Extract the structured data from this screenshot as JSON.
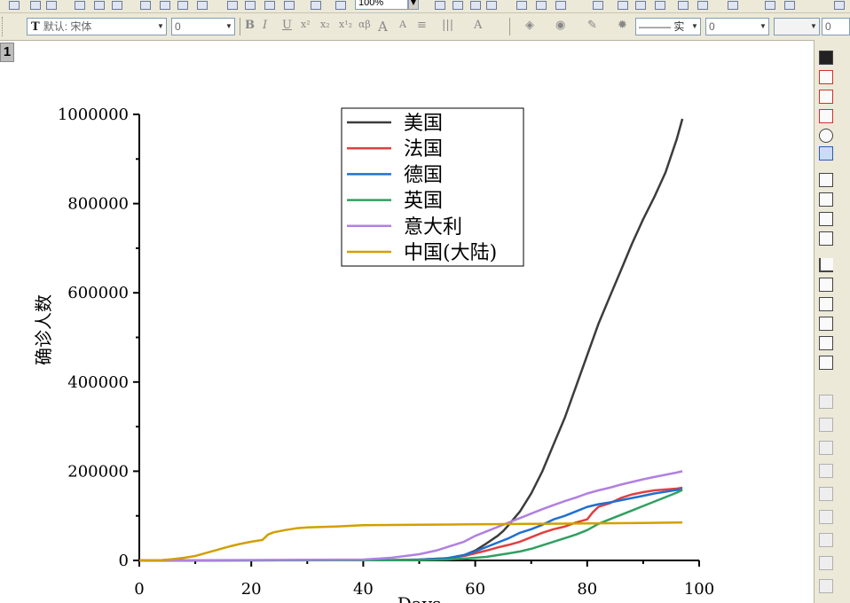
{
  "toolbar": {
    "zoom_value": "100%",
    "font_combo_value": "默认: 宋体",
    "size_combo_value": "0",
    "line_style_value": "——— 实",
    "line_width_value": "0",
    "last_value": "0"
  },
  "layer_tag": "1",
  "chart_data": {
    "type": "line",
    "xlabel": "Days",
    "ylabel": "确诊人数",
    "xlim": [
      0,
      100
    ],
    "ylim": [
      0,
      1000000
    ],
    "x_ticks": [
      "0",
      "20",
      "40",
      "60",
      "80",
      "100"
    ],
    "y_ticks": [
      "0",
      "200000",
      "400000",
      "600000",
      "800000",
      "1000000"
    ],
    "legend_position": "top-center",
    "series": [
      {
        "name": "美国",
        "color": "#3c3c3c",
        "x": [
          0,
          50,
          55,
          58,
          60,
          62,
          64,
          65,
          66,
          67,
          68,
          70,
          72,
          74,
          76,
          78,
          80,
          82,
          84,
          86,
          88,
          90,
          92,
          94,
          96,
          97
        ],
        "y": [
          0,
          1000,
          5000,
          12000,
          22000,
          38000,
          55000,
          66000,
          80000,
          95000,
          110000,
          150000,
          200000,
          260000,
          320000,
          390000,
          460000,
          530000,
          590000,
          650000,
          710000,
          765000,
          815000,
          870000,
          945000,
          990000
        ]
      },
      {
        "name": "法国",
        "color": "#e04040",
        "x": [
          0,
          45,
          50,
          55,
          58,
          60,
          62,
          64,
          66,
          68,
          70,
          72,
          74,
          76,
          78,
          80,
          81,
          82,
          84,
          86,
          88,
          90,
          92,
          94,
          96,
          97
        ],
        "y": [
          0,
          800,
          2000,
          5000,
          10000,
          16000,
          22000,
          29000,
          35000,
          42000,
          52000,
          62000,
          70000,
          76000,
          85000,
          92000,
          108000,
          120000,
          128000,
          140000,
          148000,
          153000,
          157000,
          159000,
          161000,
          163000
        ]
      },
      {
        "name": "德国",
        "color": "#2070d0",
        "x": [
          0,
          45,
          50,
          55,
          58,
          60,
          62,
          64,
          66,
          68,
          70,
          72,
          74,
          76,
          78,
          80,
          82,
          84,
          86,
          88,
          90,
          92,
          94,
          96,
          97
        ],
        "y": [
          0,
          500,
          2000,
          5000,
          12000,
          20000,
          30000,
          40000,
          50000,
          62000,
          70000,
          80000,
          92000,
          100000,
          110000,
          120000,
          126000,
          130000,
          135000,
          140000,
          145000,
          150000,
          154000,
          158000,
          160000
        ]
      },
      {
        "name": "英国",
        "color": "#30a060",
        "x": [
          0,
          50,
          55,
          58,
          60,
          62,
          64,
          66,
          68,
          70,
          72,
          74,
          76,
          78,
          80,
          82,
          84,
          86,
          88,
          90,
          92,
          94,
          96,
          97
        ],
        "y": [
          0,
          800,
          2000,
          4000,
          6000,
          8000,
          12000,
          16000,
          20000,
          26000,
          34000,
          42000,
          50000,
          58000,
          68000,
          82000,
          92000,
          102000,
          112000,
          122000,
          132000,
          142000,
          152000,
          158000
        ]
      },
      {
        "name": "意大利",
        "color": "#b080e0",
        "x": [
          0,
          40,
          45,
          50,
          53,
          55,
          58,
          60,
          62,
          64,
          66,
          68,
          70,
          72,
          74,
          76,
          78,
          80,
          82,
          84,
          86,
          88,
          90,
          92,
          94,
          96,
          97
        ],
        "y": [
          0,
          2000,
          6000,
          14000,
          22000,
          30000,
          42000,
          55000,
          65000,
          75000,
          85000,
          95000,
          105000,
          115000,
          124000,
          133000,
          141000,
          150000,
          157000,
          163000,
          170000,
          176000,
          182000,
          187000,
          192000,
          197000,
          200000
        ]
      },
      {
        "name": "中国(大陆)",
        "color": "#d0a000",
        "x": [
          0,
          2,
          4,
          6,
          8,
          10,
          12,
          14,
          16,
          18,
          20,
          21,
          22,
          23,
          24,
          26,
          28,
          30,
          35,
          40,
          50,
          60,
          70,
          80,
          90,
          97
        ],
        "y": [
          0,
          300,
          800,
          3000,
          6000,
          10000,
          17000,
          24000,
          31000,
          37000,
          42000,
          44000,
          46000,
          58000,
          63000,
          68000,
          72000,
          74000,
          76000,
          79000,
          80000,
          81000,
          82000,
          83000,
          84000,
          85000
        ]
      }
    ]
  }
}
